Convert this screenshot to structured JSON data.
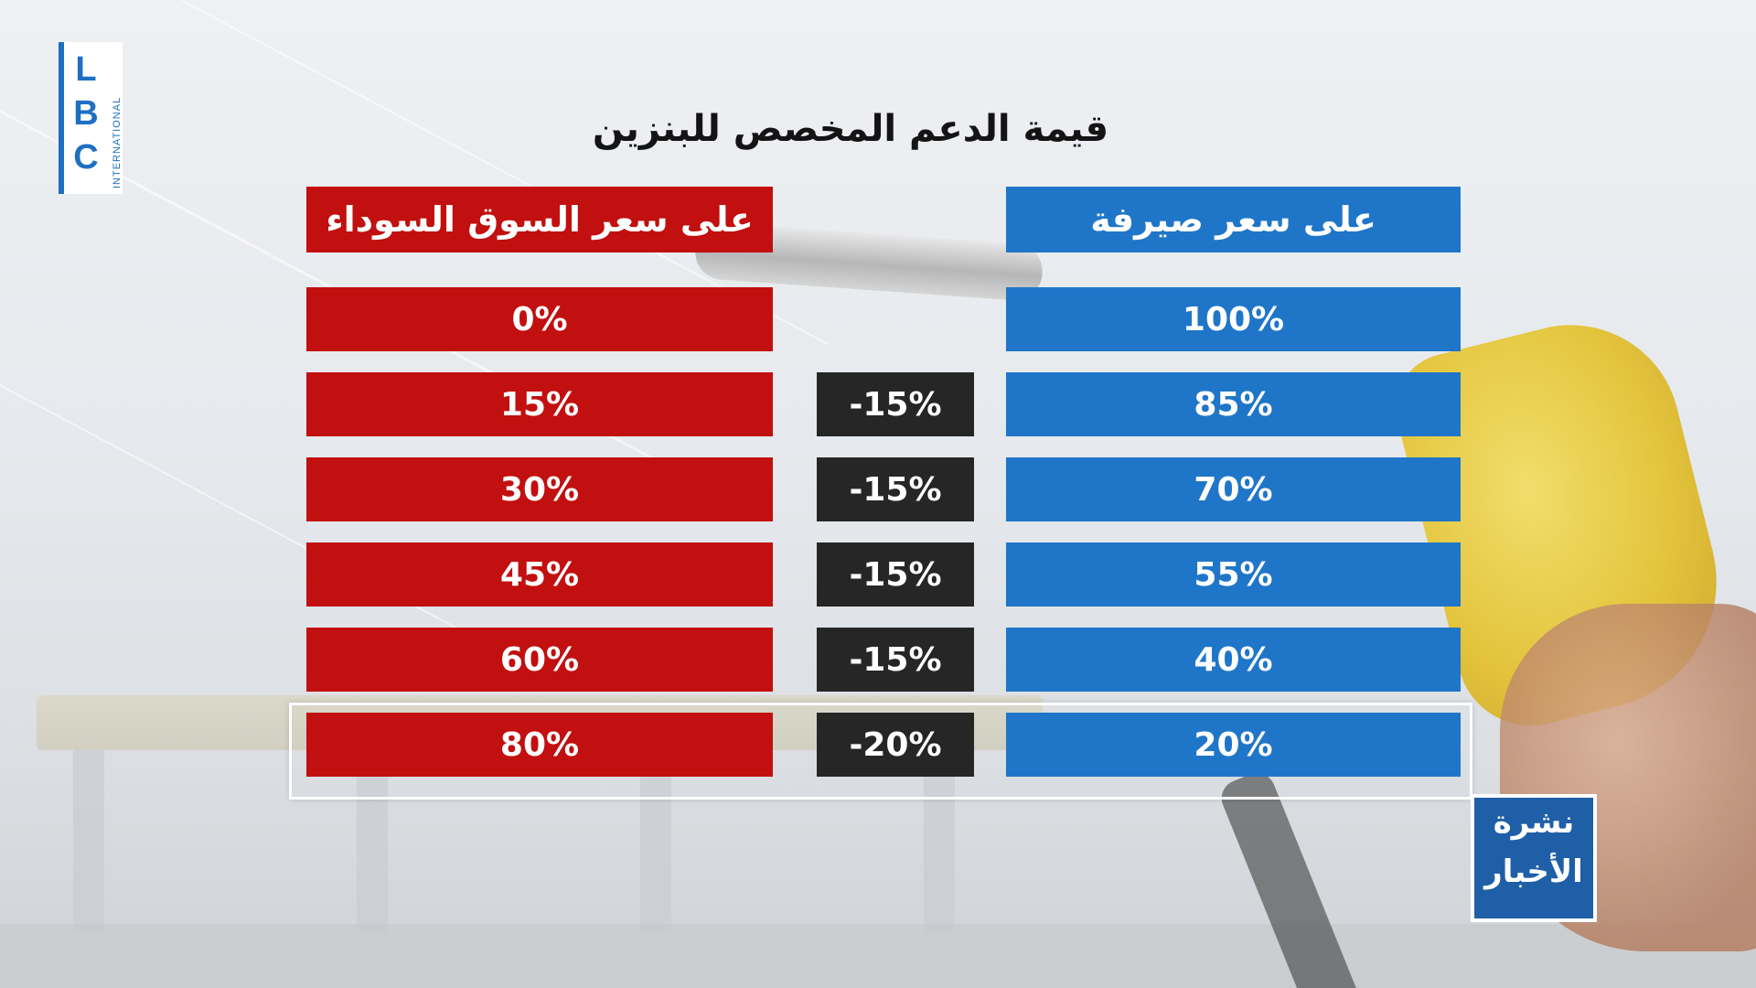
{
  "logo": {
    "letters": "LBC",
    "subtitle": "INTERNATIONAL"
  },
  "title": "قيمة الدعم المخصص للبنزين",
  "columns": {
    "black_market_header": "على سعر السوق السوداء",
    "exchange_rate_header": "على سعر صيرفة"
  },
  "rows": [
    {
      "black_market": "0%",
      "difference": "",
      "exchange_rate": "100%"
    },
    {
      "black_market": "15%",
      "difference": "-15%",
      "exchange_rate": "85%"
    },
    {
      "black_market": "30%",
      "difference": "-15%",
      "exchange_rate": "70%"
    },
    {
      "black_market": "45%",
      "difference": "-15%",
      "exchange_rate": "55%"
    },
    {
      "black_market": "60%",
      "difference": "-15%",
      "exchange_rate": "40%"
    },
    {
      "black_market": "80%",
      "difference": "-20%",
      "exchange_rate": "20%"
    }
  ],
  "highlighted_row": 5,
  "news_badge": {
    "line1": "نشرة",
    "line2": "الأخبار"
  },
  "colors": {
    "red": "#c20f0f",
    "blue": "#1f76c8",
    "black": "#262626",
    "badge": "#1f5fa7"
  }
}
